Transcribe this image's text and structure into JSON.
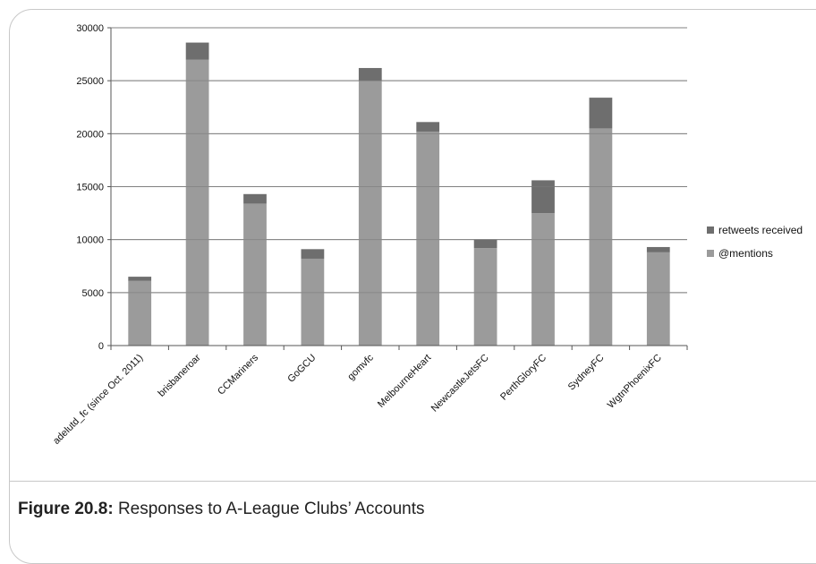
{
  "chart_data": {
    "type": "bar",
    "stacked": true,
    "categories": [
      "adelutd_fc (since Oct. 2011)",
      "brisbaneroar",
      "CCMariners",
      "GoGCU",
      "gomvfc",
      "MelbourneHeart",
      "NewcastleJetsFC",
      "PerthGloryFC",
      "SydneyFC",
      "WgtnPhoenixFC"
    ],
    "series": [
      {
        "name": "@mentions",
        "values": [
          6100,
          27000,
          13400,
          8200,
          25000,
          20200,
          9200,
          12500,
          20500,
          8800
        ],
        "color": "#9b9b9b"
      },
      {
        "name": "retweets received",
        "values": [
          400,
          1600,
          900,
          900,
          1200,
          900,
          800,
          3100,
          2900,
          500
        ],
        "color": "#6e6e6e"
      }
    ],
    "ylim": [
      0,
      30000
    ],
    "yticks": [
      "0",
      "5000",
      "10000",
      "15000",
      "20000",
      "25000",
      "30000"
    ],
    "grid": true,
    "legend_position": "right"
  },
  "caption": {
    "label": "Figure 20.8:",
    "text": "Responses to A-League Clubs’ Accounts"
  }
}
